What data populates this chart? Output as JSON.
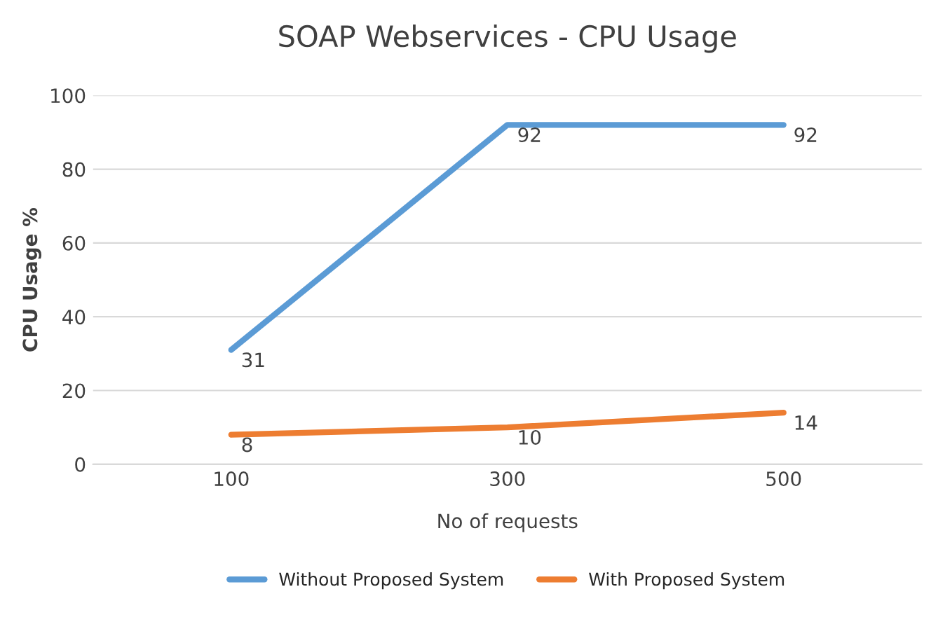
{
  "chart_data": {
    "type": "line",
    "title": "SOAP Webservices - CPU Usage",
    "xlabel": "No of requests",
    "ylabel": "CPU Usage %",
    "categories": [
      "100",
      "300",
      "500"
    ],
    "series": [
      {
        "name": "Without Proposed System",
        "color": "#5b9bd5",
        "values": [
          31,
          92,
          92
        ]
      },
      {
        "name": "With Proposed System",
        "color": "#ed7d31",
        "values": [
          8,
          10,
          14
        ]
      }
    ],
    "ylim": [
      0,
      100
    ],
    "yticks": [
      0,
      20,
      40,
      60,
      80,
      100
    ],
    "grid": "y",
    "legend": "bottom",
    "data_labels": true,
    "marker": "none",
    "line_style": "solid"
  }
}
